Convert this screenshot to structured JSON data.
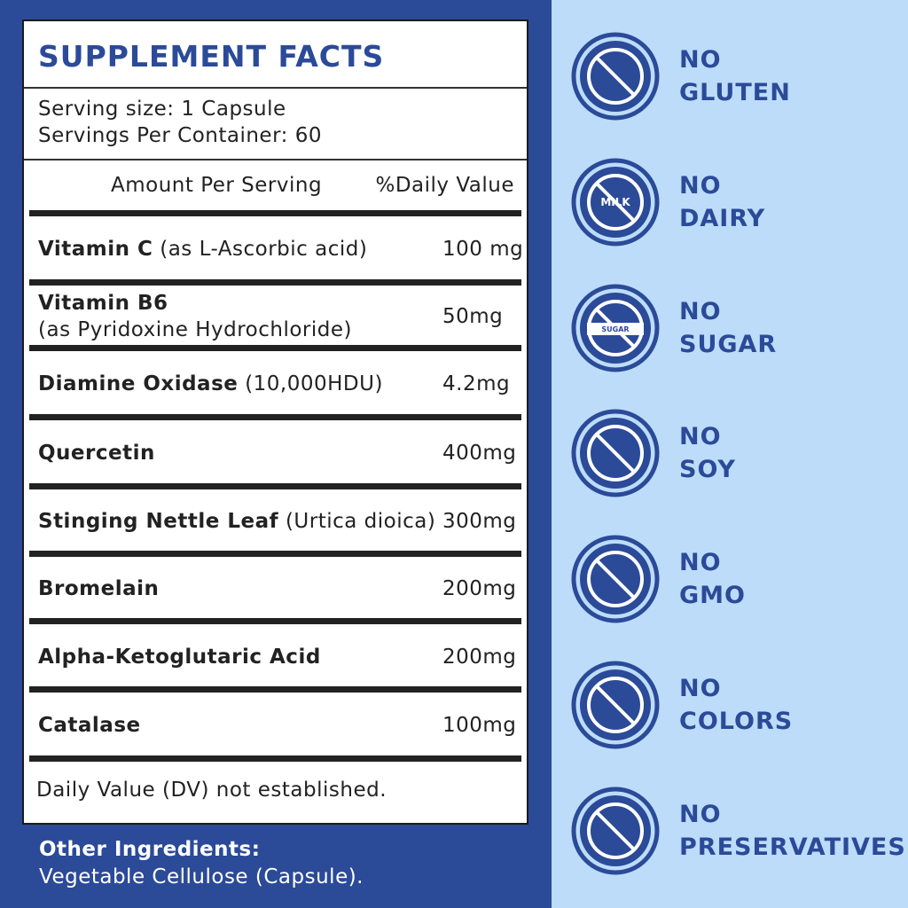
{
  "header": {
    "title": "SUPPLEMENT FACTS",
    "serving_size": "Serving size: 1 Capsule",
    "servings_per_container": "Servings Per Container: 60"
  },
  "table": {
    "columns": [
      "Amount Per Serving",
      "%Daily Value"
    ],
    "rows": [
      {
        "name": "Vitamin C",
        "qualifier": "(as L-Ascorbic acid)",
        "amount": "100 mg"
      },
      {
        "name": "Vitamin B6",
        "qualifier": "(as Pyridoxine Hydrochloride)",
        "amount": "50mg"
      },
      {
        "name": "Diamine Oxidase",
        "qualifier": "(10,000HDU)",
        "amount": "4.2mg"
      },
      {
        "name": "Quercetin",
        "amount": "400mg"
      },
      {
        "name": "Stinging Nettle Leaf",
        "qualifier": "(Urtica dioica)",
        "amount": "300mg"
      },
      {
        "name": "Bromelain",
        "amount": "200mg"
      },
      {
        "name": "Alpha-Ketoglutaric Acid",
        "amount": "200mg"
      },
      {
        "name": "Catalase",
        "amount": "100mg"
      }
    ],
    "footnote": "Daily Value (DV) not established."
  },
  "other_ingredients": {
    "label": "Other Ingredients:",
    "text": "Vegetable Cellulose (Capsule)."
  },
  "badges": [
    {
      "lines": [
        "NO",
        "GLUTEN"
      ]
    },
    {
      "lines": [
        "NO",
        "DAIRY"
      ],
      "icon_text": "MILK"
    },
    {
      "lines": [
        "NO",
        "SUGAR"
      ],
      "icon_text": "SUGAR"
    },
    {
      "lines": [
        "NO",
        "SOY"
      ]
    },
    {
      "lines": [
        "NO",
        "GMO"
      ]
    },
    {
      "lines": [
        "NO",
        "COLORS"
      ]
    },
    {
      "lines": [
        "NO",
        "PRESERVATIVES"
      ]
    }
  ]
}
